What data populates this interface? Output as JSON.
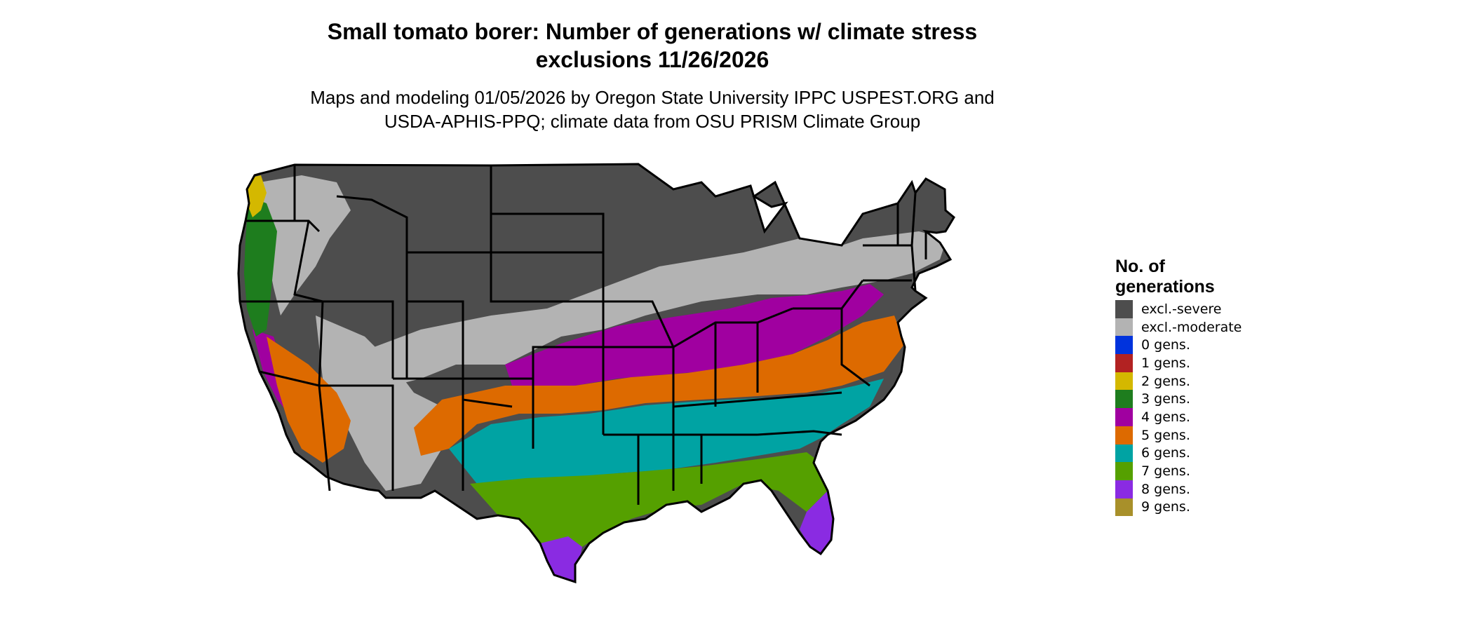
{
  "title": {
    "line1": "Small tomato borer: Number of generations w/ climate stress",
    "line2": "exclusions 11/26/2026"
  },
  "subtitle": {
    "line1": "Maps and modeling 01/05/2026 by Oregon State University IPPC USPEST.ORG and",
    "line2": "USDA-APHIS-PPQ; climate data from OSU PRISM Climate Group"
  },
  "legend": {
    "title_line1": "No. of",
    "title_line2": "generations",
    "items": [
      {
        "label": "excl.-severe",
        "color": "#4d4d4d"
      },
      {
        "label": "excl.-moderate",
        "color": "#b3b3b3"
      },
      {
        "label": "0 gens.",
        "color": "#0033dd"
      },
      {
        "label": "1 gens.",
        "color": "#b22222"
      },
      {
        "label": "2 gens.",
        "color": "#d4b800"
      },
      {
        "label": "3 gens.",
        "color": "#1e7d1e"
      },
      {
        "label": "4 gens.",
        "color": "#a000a0"
      },
      {
        "label": "5 gens.",
        "color": "#dd6a00"
      },
      {
        "label": "6 gens.",
        "color": "#00a3a3"
      },
      {
        "label": "7 gens.",
        "color": "#55a000"
      },
      {
        "label": "8 gens.",
        "color": "#8a2be2"
      },
      {
        "label": "9 gens.",
        "color": "#a8902a"
      }
    ]
  }
}
